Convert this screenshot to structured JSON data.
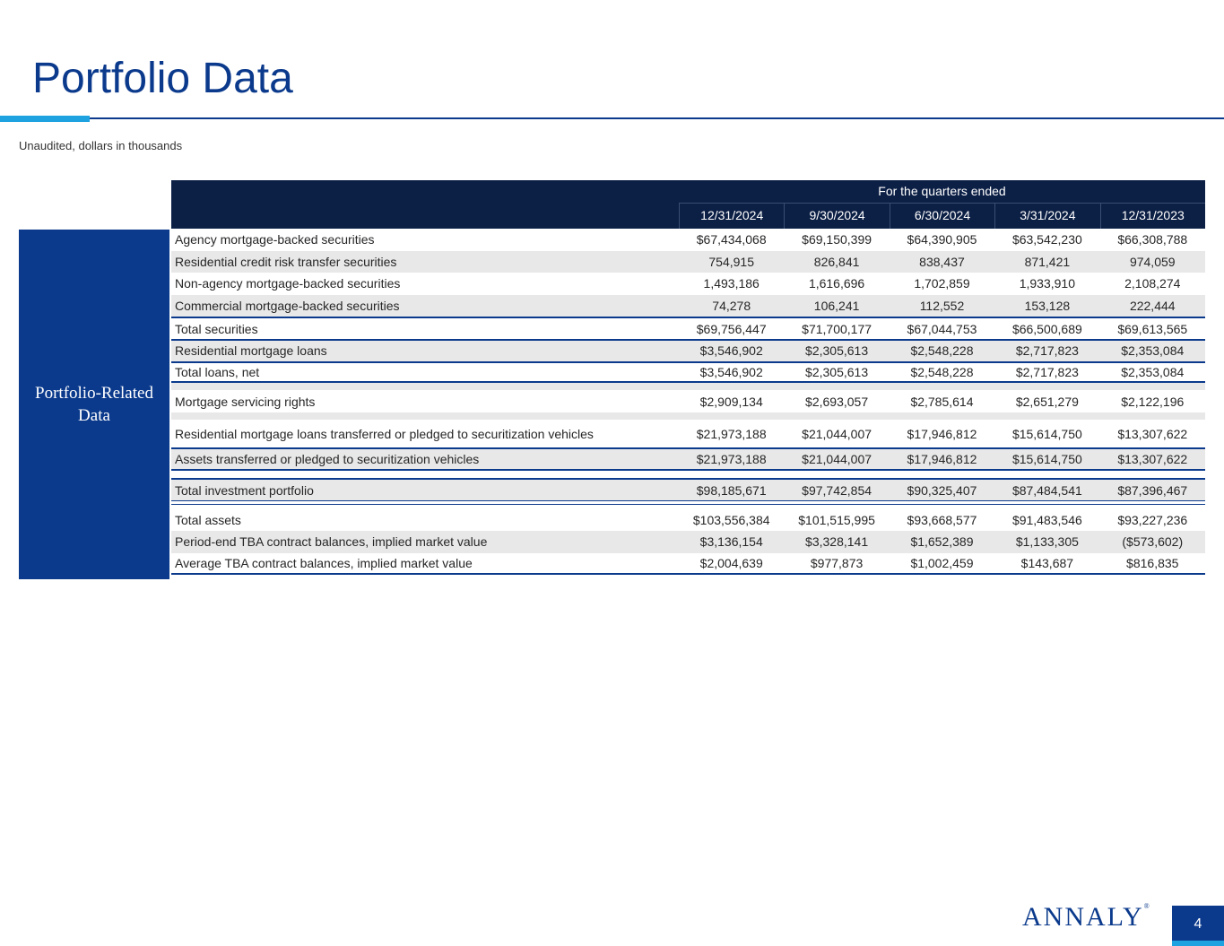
{
  "title": "Portfolio Data",
  "subtitle": "Unaudited, dollars in thousands",
  "section_label": [
    "Portfolio-Related",
    "Data"
  ],
  "table": {
    "group_header": "For the quarters ended",
    "columns": [
      "12/31/2024",
      "9/30/2024",
      "6/30/2024",
      "3/31/2024",
      "12/31/2023"
    ],
    "rows": [
      {
        "label": "Agency mortgage-backed securities",
        "values": [
          "$67,434,068",
          "$69,150,399",
          "$64,390,905",
          "$63,542,230",
          "$66,308,788"
        ]
      },
      {
        "label": "Residential credit risk transfer securities",
        "values": [
          "754,915",
          "826,841",
          "838,437",
          "871,421",
          "974,059"
        ]
      },
      {
        "label": "Non-agency mortgage-backed securities",
        "values": [
          "1,493,186",
          "1,616,696",
          "1,702,859",
          "1,933,910",
          "2,108,274"
        ]
      },
      {
        "label": "Commercial mortgage-backed securities",
        "values": [
          "74,278",
          "106,241",
          "112,552",
          "153,128",
          "222,444"
        ]
      },
      {
        "label": "Total securities",
        "values": [
          "$69,756,447",
          "$71,700,177",
          "$67,044,753",
          "$66,500,689",
          "$69,613,565"
        ]
      },
      {
        "label": "Residential mortgage loans",
        "values": [
          "$3,546,902",
          "$2,305,613",
          "$2,548,228",
          "$2,717,823",
          "$2,353,084"
        ]
      },
      {
        "label": "Total loans, net",
        "values": [
          "$3,546,902",
          "$2,305,613",
          "$2,548,228",
          "$2,717,823",
          "$2,353,084"
        ]
      },
      {
        "label": "Mortgage servicing rights",
        "values": [
          "$2,909,134",
          "$2,693,057",
          "$2,785,614",
          "$2,651,279",
          "$2,122,196"
        ]
      },
      {
        "label": "Residential mortgage loans transferred or pledged to securitization vehicles",
        "values": [
          "$21,973,188",
          "$21,044,007",
          "$17,946,812",
          "$15,614,750",
          "$13,307,622"
        ]
      },
      {
        "label": "Assets transferred or pledged to securitization vehicles",
        "values": [
          "$21,973,188",
          "$21,044,007",
          "$17,946,812",
          "$15,614,750",
          "$13,307,622"
        ]
      },
      {
        "label": "Total investment portfolio",
        "values": [
          "$98,185,671",
          "$97,742,854",
          "$90,325,407",
          "$87,484,541",
          "$87,396,467"
        ]
      },
      {
        "label": "Total assets",
        "values": [
          "$103,556,384",
          "$101,515,995",
          "$93,668,577",
          "$91,483,546",
          "$93,227,236"
        ]
      },
      {
        "label": "Period-end TBA contract balances, implied market value",
        "values": [
          "$3,136,154",
          "$3,328,141",
          "$1,652,389",
          "$1,133,305",
          "($573,602)"
        ]
      },
      {
        "label": "Average TBA contract balances, implied market value",
        "values": [
          "$2,004,639",
          "$977,873",
          "$1,002,459",
          "$143,687",
          "$816,835"
        ]
      }
    ]
  },
  "footer": {
    "logo_text": "ANNALY",
    "logo_mark": "®",
    "page_number": "4"
  },
  "colors": {
    "brand_blue": "#0b3a8c",
    "header_navy": "#0c1f45",
    "accent_cyan": "#1fa3e0",
    "row_shade": "#e8e8e8"
  }
}
